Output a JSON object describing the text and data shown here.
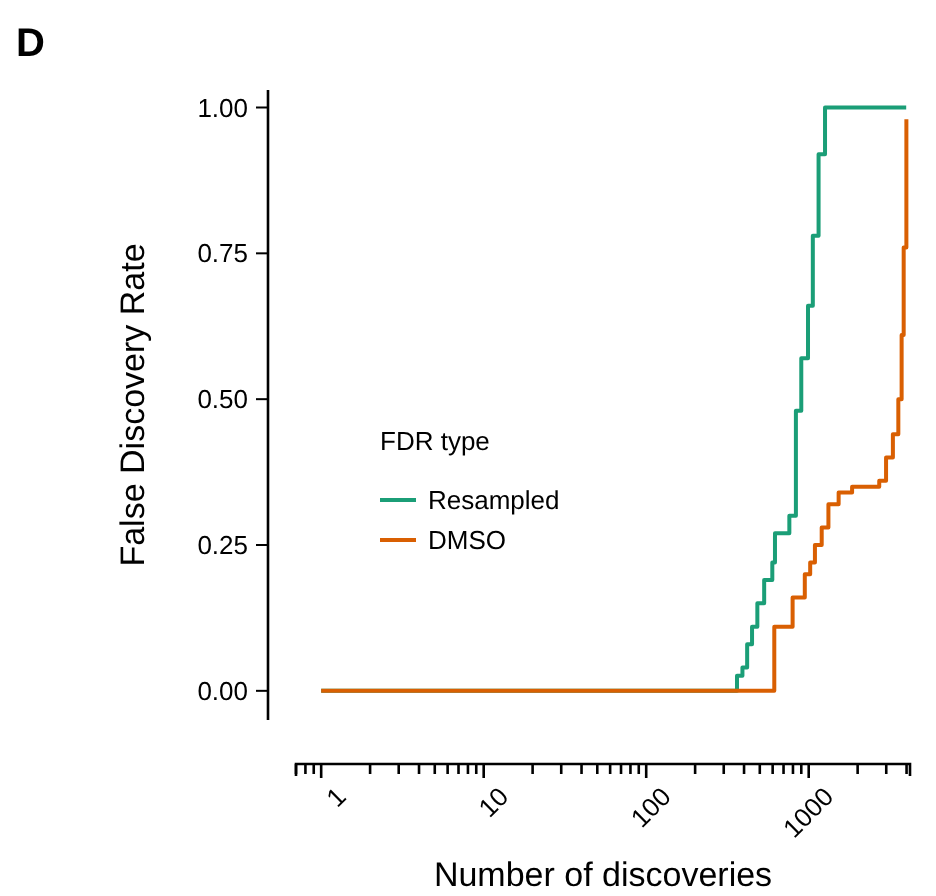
{
  "chart_data": {
    "type": "step",
    "xlabel": "Number of discoveries",
    "ylabel": "False Discovery Rate",
    "legend_title": "FDR type",
    "legend": "left",
    "log": "x",
    "grid": false,
    "annotations": [
      "D"
    ],
    "xlim": [
      0.7,
      4200
    ],
    "ylim": [
      -0.05,
      1.03
    ],
    "xticks": [
      1,
      10,
      100,
      1000
    ],
    "yticks": [
      {
        "value": 0,
        "label": "0.00"
      },
      {
        "value": 0.25,
        "label": "0.25"
      },
      {
        "value": 0.5,
        "label": "0.50"
      },
      {
        "value": 0.75,
        "label": "0.75"
      },
      {
        "value": 1,
        "label": "1.00"
      }
    ],
    "series": [
      {
        "name": "Resampled",
        "color": "#1b9e77",
        "x": [
          1,
          362,
          391,
          418,
          448,
          483,
          532,
          597,
          620,
          760,
          834,
          900,
          990,
          1060,
          1150,
          1260,
          3980
        ],
        "values": [
          0,
          0.026,
          0.04,
          0.08,
          0.11,
          0.15,
          0.19,
          0.22,
          0.27,
          0.3,
          0.48,
          0.57,
          0.66,
          0.78,
          0.92,
          1,
          1
        ]
      },
      {
        "name": "DMSO",
        "color": "#d95f02",
        "x": [
          1,
          614,
          796,
          946,
          1021,
          1092,
          1202,
          1322,
          1528,
          1849,
          2716,
          2992,
          3296,
          3560,
          3730,
          3840,
          3990
        ],
        "values": [
          0,
          0.11,
          0.16,
          0.2,
          0.22,
          0.25,
          0.28,
          0.32,
          0.34,
          0.35,
          0.36,
          0.4,
          0.44,
          0.5,
          0.61,
          0.76,
          0.98
        ]
      }
    ]
  }
}
